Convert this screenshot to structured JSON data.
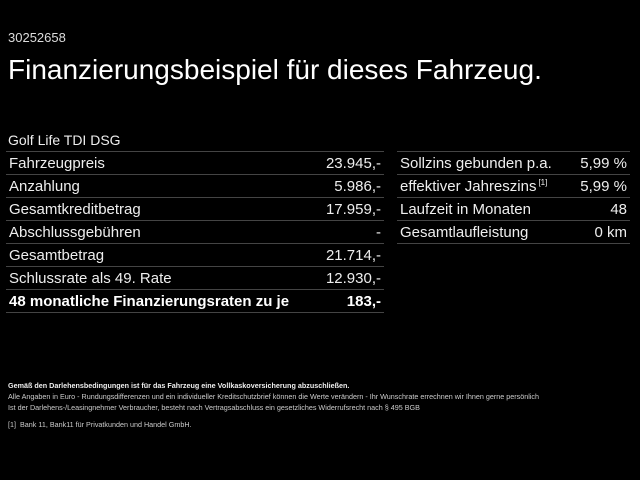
{
  "offer_id": "30252658",
  "title": "Finanzierungsbeispiel für dieses Fahrzeug.",
  "model": "Golf Life TDI DSG",
  "left_table": [
    {
      "label": "Fahrzeugpreis",
      "value": "23.945,-"
    },
    {
      "label": "Anzahlung",
      "value": "5.986,-"
    },
    {
      "label": "Gesamtkreditbetrag",
      "value": "17.959,-"
    },
    {
      "label": "Abschlussgebühren",
      "value": "-"
    },
    {
      "label": "Gesamtbetrag",
      "value": "21.714,-"
    },
    {
      "label": "Schlussrate als 49. Rate",
      "value": "12.930,-"
    },
    {
      "label": "48 monatliche Finanzierungsraten zu je",
      "value": "183,-"
    }
  ],
  "right_table": [
    {
      "label": "Sollzins gebunden p.a.",
      "value": "5,99 %"
    },
    {
      "label": "effektiver Jahreszins",
      "sup": "[1]",
      "value": "5,99 %"
    },
    {
      "label": "Laufzeit in Monaten",
      "value": "48"
    },
    {
      "label": "Gesamtlaufleistung",
      "value": "0 km"
    }
  ],
  "notes": {
    "bold": "Gemäß den Darlehensbedingungen ist für das Fahrzeug eine Vollkaskoversicherung abzuschließen.",
    "line1": "Alle Angaben in Euro - Rundungsdifferenzen und ein individueller Kreditschutzbrief können die Werte verändern - Ihr Wunschrate errechnen wir Ihnen gerne persönlich",
    "line2": "Ist der Darlehens-/Leasingnehmer Verbraucher, besteht nach Vertragsabschluss ein gesetzliches Widerrufsrecht nach § 495 BGB",
    "footnote_mark": "[1]",
    "footnote": "Bank 11, Bank11 für Privatkunden und Handel GmbH."
  }
}
